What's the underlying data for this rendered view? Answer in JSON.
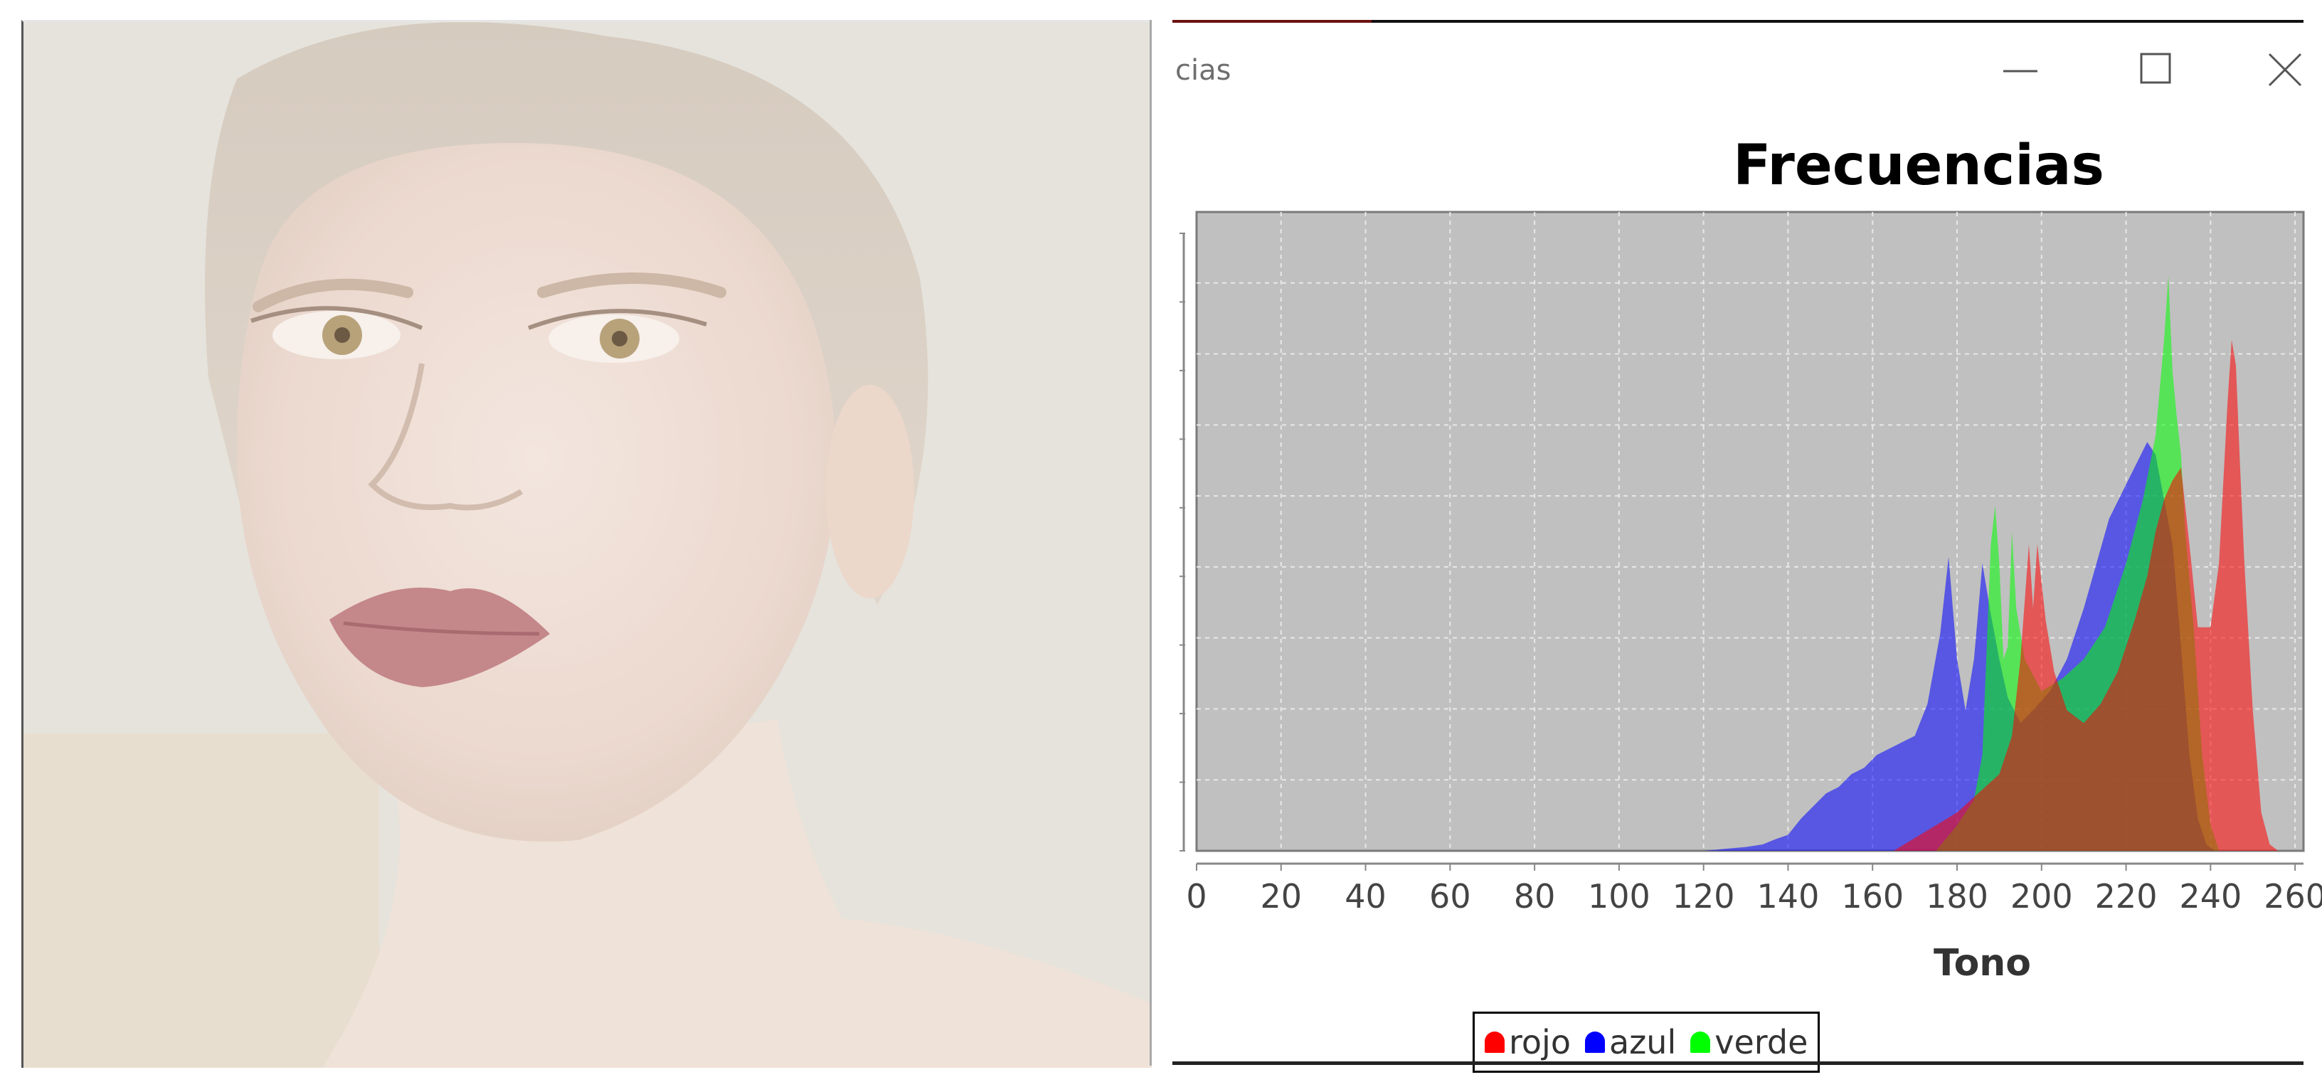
{
  "window": {
    "title": "cias"
  },
  "legend": {
    "items": [
      {
        "label": "rojo",
        "color": "#ff0000"
      },
      {
        "label": "azul",
        "color": "#0000ff"
      },
      {
        "label": "verde",
        "color": "#00ff00"
      }
    ]
  },
  "chart_data": {
    "type": "area",
    "title": "Frecuencias",
    "xlabel": "Tono",
    "ylabel": "",
    "xlim": [
      0,
      262
    ],
    "ylim": [
      0,
      100
    ],
    "grid": true,
    "legend_position": "bottom",
    "x_ticks": [
      "0",
      "20",
      "40",
      "60",
      "80",
      "100",
      "120",
      "140",
      "160",
      "180",
      "200",
      "220",
      "240",
      "260"
    ],
    "series": [
      {
        "name": "azul",
        "color": "#0000ff",
        "points": [
          [
            120,
            0
          ],
          [
            125,
            0.3
          ],
          [
            130,
            0.6
          ],
          [
            134,
            1
          ],
          [
            137,
            1.8
          ],
          [
            140,
            2.5
          ],
          [
            143,
            5
          ],
          [
            146,
            7
          ],
          [
            149,
            9
          ],
          [
            152,
            10
          ],
          [
            155,
            12
          ],
          [
            158,
            13
          ],
          [
            161,
            15
          ],
          [
            164,
            16
          ],
          [
            167,
            17
          ],
          [
            170,
            18
          ],
          [
            173,
            23
          ],
          [
            176,
            34
          ],
          [
            178,
            46
          ],
          [
            180,
            30
          ],
          [
            182,
            22
          ],
          [
            184,
            30
          ],
          [
            186,
            45
          ],
          [
            188,
            37
          ],
          [
            190,
            30
          ],
          [
            192,
            24
          ],
          [
            195,
            20
          ],
          [
            198,
            22
          ],
          [
            202,
            25
          ],
          [
            206,
            30
          ],
          [
            210,
            38
          ],
          [
            213,
            45
          ],
          [
            216,
            52
          ],
          [
            219,
            56
          ],
          [
            222,
            60
          ],
          [
            225,
            64
          ],
          [
            227,
            62
          ],
          [
            229,
            55
          ],
          [
            231,
            48
          ],
          [
            233,
            32
          ],
          [
            235,
            15
          ],
          [
            237,
            5
          ],
          [
            239,
            1
          ],
          [
            241,
            0
          ]
        ]
      },
      {
        "name": "verde",
        "color": "#00ff00",
        "points": [
          [
            175,
            0
          ],
          [
            180,
            4
          ],
          [
            184,
            8
          ],
          [
            186,
            15
          ],
          [
            188,
            48
          ],
          [
            189,
            54
          ],
          [
            190,
            45
          ],
          [
            191,
            30
          ],
          [
            192,
            32
          ],
          [
            193,
            50
          ],
          [
            194,
            38
          ],
          [
            196,
            30
          ],
          [
            200,
            25
          ],
          [
            205,
            27
          ],
          [
            210,
            30
          ],
          [
            215,
            35
          ],
          [
            220,
            45
          ],
          [
            224,
            55
          ],
          [
            227,
            65
          ],
          [
            229,
            80
          ],
          [
            230,
            90
          ],
          [
            231,
            75
          ],
          [
            232,
            68
          ],
          [
            233,
            62
          ],
          [
            234,
            50
          ],
          [
            236,
            35
          ],
          [
            238,
            15
          ],
          [
            240,
            4
          ],
          [
            242,
            0
          ]
        ]
      },
      {
        "name": "rojo",
        "color": "#ff0000",
        "points": [
          [
            165,
            0
          ],
          [
            170,
            2
          ],
          [
            175,
            4
          ],
          [
            180,
            6
          ],
          [
            185,
            9
          ],
          [
            190,
            12
          ],
          [
            193,
            18
          ],
          [
            195,
            30
          ],
          [
            197,
            48
          ],
          [
            198,
            38
          ],
          [
            199,
            48
          ],
          [
            201,
            36
          ],
          [
            203,
            28
          ],
          [
            206,
            22
          ],
          [
            210,
            20
          ],
          [
            214,
            23
          ],
          [
            218,
            28
          ],
          [
            222,
            36
          ],
          [
            225,
            43
          ],
          [
            227,
            50
          ],
          [
            229,
            55
          ],
          [
            231,
            58
          ],
          [
            233,
            60
          ],
          [
            235,
            48
          ],
          [
            237,
            35
          ],
          [
            240,
            35
          ],
          [
            242,
            45
          ],
          [
            244,
            70
          ],
          [
            245,
            80
          ],
          [
            246,
            76
          ],
          [
            247,
            60
          ],
          [
            248,
            45
          ],
          [
            250,
            22
          ],
          [
            252,
            6
          ],
          [
            254,
            1
          ],
          [
            256,
            0
          ]
        ]
      }
    ]
  }
}
